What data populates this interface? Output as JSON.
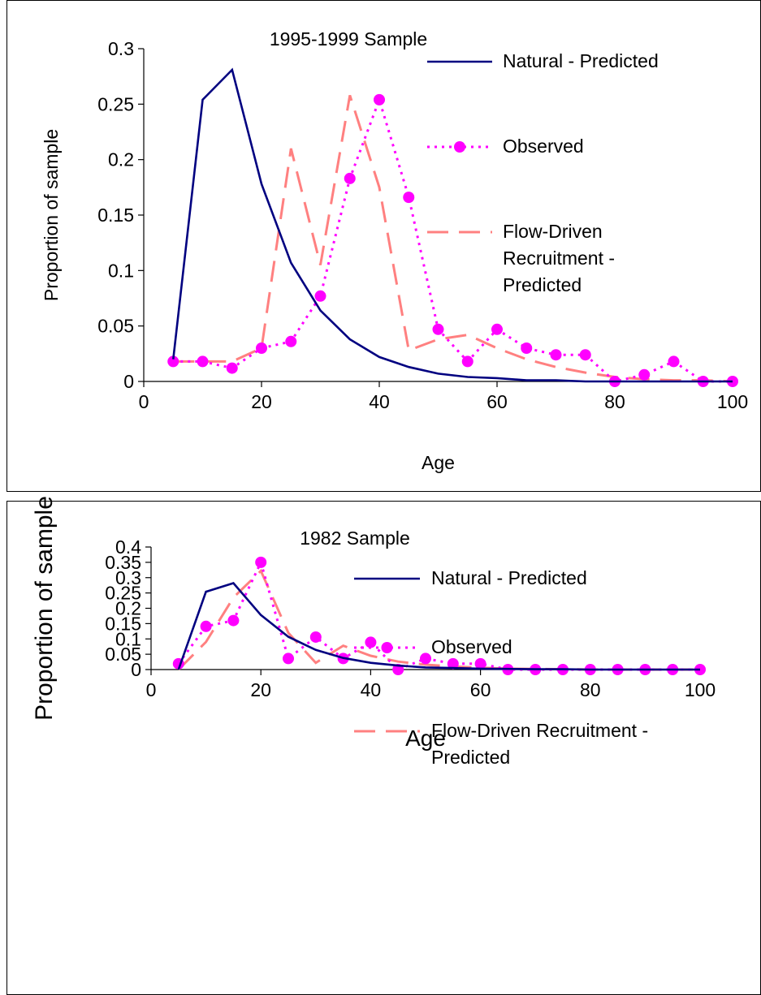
{
  "chart_data": [
    {
      "type": "line",
      "title": "1995-1999 Sample",
      "xlabel": "Age",
      "ylabel": "Proportion of sample",
      "xlim": [
        0,
        100
      ],
      "ylim": [
        0,
        0.3
      ],
      "xticks": [
        0,
        20,
        40,
        60,
        80,
        100
      ],
      "yticks": [
        0,
        0.05,
        0.1,
        0.15,
        0.2,
        0.25,
        0.3
      ],
      "ytick_labels": [
        "0",
        "0.05",
        "0.1",
        "0.15",
        "0.2",
        "0.25",
        "0.3"
      ],
      "grid": false,
      "legend_position": "right",
      "x": [
        5,
        10,
        15,
        20,
        25,
        30,
        35,
        40,
        45,
        50,
        55,
        60,
        65,
        70,
        75,
        80,
        85,
        90,
        95,
        100
      ],
      "series": [
        {
          "name": "Natural - Predicted",
          "style": "solid",
          "color": "#000080",
          "legend_lines": [
            "Natural - Predicted"
          ],
          "values": [
            0.02,
            0.254,
            0.281,
            0.178,
            0.107,
            0.064,
            0.038,
            0.022,
            0.013,
            0.007,
            0.004,
            0.003,
            0.001,
            0.001,
            0.0,
            0.0,
            0.0,
            0.0,
            0.0,
            0.0
          ]
        },
        {
          "name": "Observed",
          "style": "dotted-markers",
          "color": "#ff00ff",
          "legend_lines": [
            "Observed"
          ],
          "values": [
            0.018,
            0.018,
            0.012,
            0.03,
            0.036,
            0.077,
            0.183,
            0.254,
            0.166,
            0.047,
            0.018,
            0.047,
            0.03,
            0.024,
            0.024,
            0.0,
            0.006,
            0.018,
            0.0,
            0.0
          ]
        },
        {
          "name": "Flow-Driven Recruitment - Predicted",
          "style": "dashed",
          "color": "#ff8080",
          "legend_lines": [
            "Flow-Driven",
            "Recruitment -",
            "Predicted"
          ],
          "values": [
            0.018,
            0.018,
            0.018,
            0.03,
            0.21,
            0.105,
            0.258,
            0.175,
            0.028,
            0.038,
            0.042,
            0.03,
            0.02,
            0.013,
            0.008,
            0.004,
            0.002,
            0.001,
            0.001,
            0.0
          ]
        }
      ]
    },
    {
      "type": "line",
      "title": "1982 Sample",
      "xlabel": "Age",
      "ylabel": "Proportion of sample",
      "xlim": [
        0,
        100
      ],
      "ylim": [
        0,
        0.4
      ],
      "xticks": [
        0,
        20,
        40,
        60,
        80,
        100
      ],
      "yticks": [
        0,
        0.05,
        0.1,
        0.15,
        0.2,
        0.25,
        0.3,
        0.35,
        0.4
      ],
      "ytick_labels": [
        "0",
        "0.05",
        "0.1",
        "0.15",
        "0.2",
        "0.25",
        "0.3",
        "0.35",
        "0.4"
      ],
      "grid": false,
      "legend_position": "right",
      "x": [
        5,
        10,
        15,
        20,
        25,
        30,
        35,
        40,
        45,
        50,
        55,
        60,
        65,
        70,
        75,
        80,
        85,
        90,
        95,
        100
      ],
      "series": [
        {
          "name": "Natural - Predicted",
          "style": "solid",
          "color": "#000080",
          "legend_lines": [
            "Natural - Predicted"
          ],
          "values": [
            0.0,
            0.254,
            0.282,
            0.178,
            0.107,
            0.064,
            0.038,
            0.022,
            0.013,
            0.007,
            0.005,
            0.003,
            0.002,
            0.001,
            0.001,
            0.0,
            0.0,
            0.0,
            0.0,
            0.0
          ]
        },
        {
          "name": "Observed",
          "style": "dotted-markers",
          "color": "#ff00ff",
          "legend_lines": [
            "Observed"
          ],
          "values": [
            0.019,
            0.141,
            0.16,
            0.35,
            0.036,
            0.106,
            0.036,
            0.089,
            0.0,
            0.036,
            0.019,
            0.019,
            0.0,
            0.0,
            0.0,
            0.0,
            0.0,
            0.0,
            0.0,
            0.0
          ]
        },
        {
          "name": "Flow-Driven Recruitment - Predicted",
          "style": "dashed",
          "color": "#ff8080",
          "legend_lines": [
            "Flow-Driven Recruitment -",
            "Predicted"
          ],
          "values": [
            0.0,
            0.09,
            0.235,
            0.322,
            0.12,
            0.022,
            0.078,
            0.045,
            0.026,
            0.016,
            0.01,
            0.006,
            0.003,
            0.002,
            0.001,
            0.0,
            0.0,
            0.0,
            0.0,
            0.0
          ]
        }
      ]
    }
  ]
}
